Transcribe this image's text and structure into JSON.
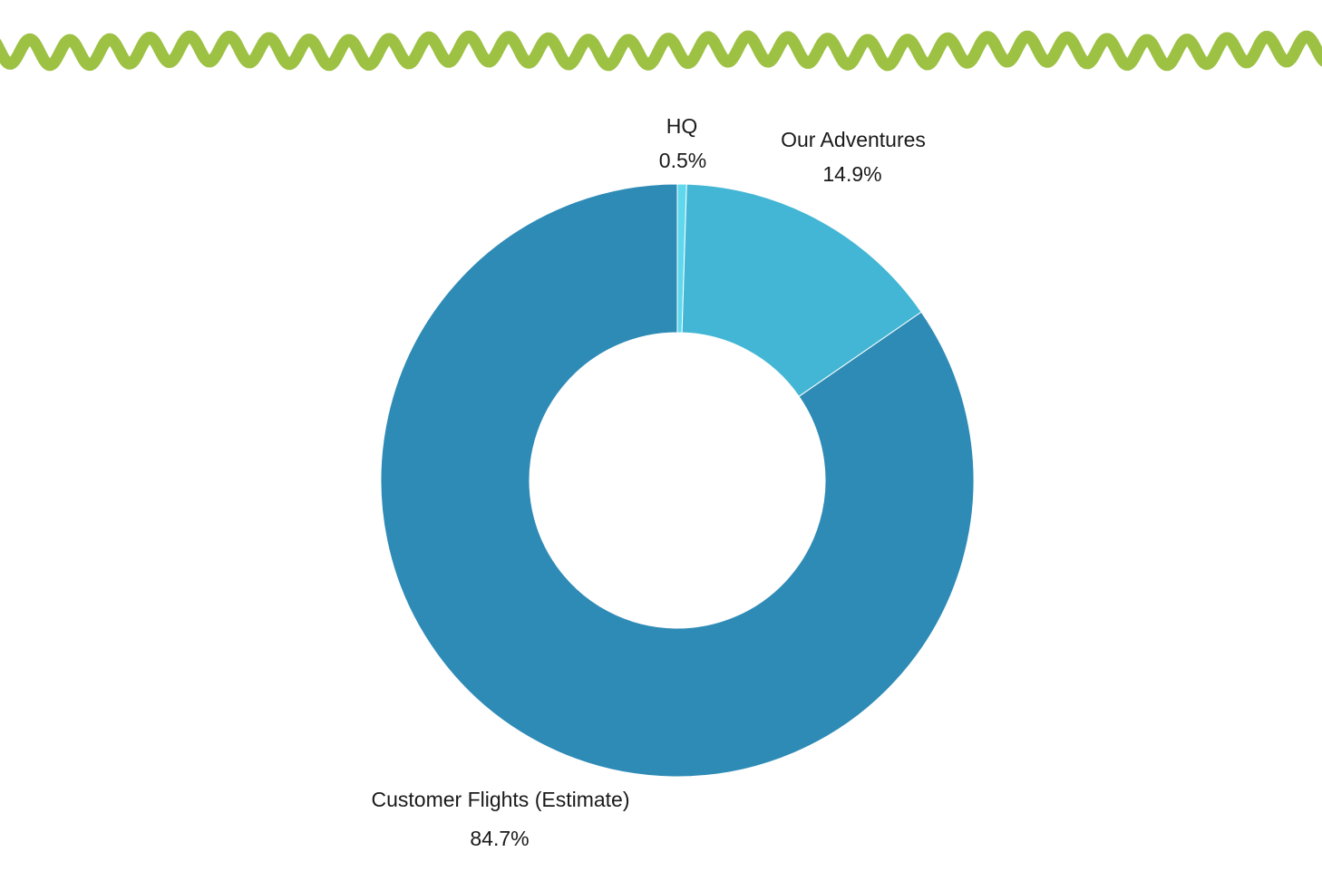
{
  "colors": {
    "background": "#ffffff",
    "wave": "#9cc143",
    "label_text": "#1a1a1a"
  },
  "decoration": {
    "top_border": "squiggle-line"
  },
  "chart_data": {
    "type": "pie",
    "variant": "donut",
    "title": "",
    "legend": "none",
    "start_angle": "top (12 o'clock), clockwise",
    "slices": [
      {
        "label": "HQ",
        "value": 0.5,
        "value_label": "0.5%",
        "color": "#5fd8ee"
      },
      {
        "label": "Our Adventures",
        "value": 14.9,
        "value_label": "14.9%",
        "color": "#42b6d4"
      },
      {
        "label": "Customer Flights (Estimate)",
        "value": 84.7,
        "value_label": "84.7%",
        "color": "#2e8bb6"
      }
    ]
  }
}
